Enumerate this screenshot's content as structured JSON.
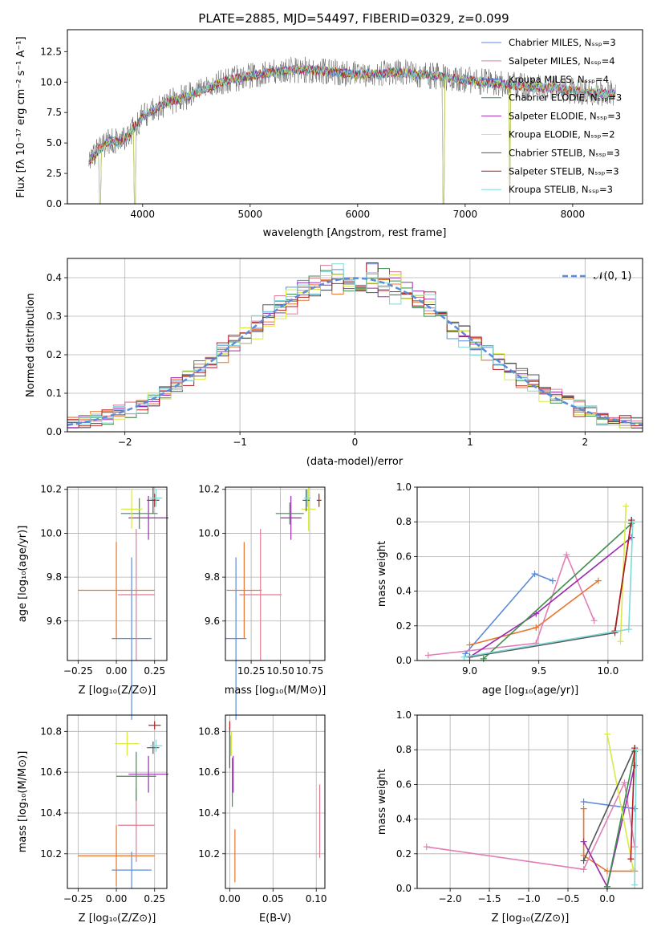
{
  "colors": {
    "chabrier_miles": "#5b8bd9",
    "salpeter_miles": "#e07b91",
    "kroupa_miles": "#4a73c9",
    "chabrier_elodie": "#3f8f4f",
    "salpeter_elodie": "#9a2ab0",
    "kroupa_elodie": "#d8ea45",
    "chabrier_stelib": "#555555",
    "salpeter_stelib": "#b01e1e",
    "kroupa_stelib": "#7fd8d8",
    "orange": "#e8742a",
    "pink": "#e27fb6",
    "normal_curve": "#5b8bd9",
    "grid": "#b0b0b0"
  },
  "chart_data": [
    {
      "id": "spectrum",
      "type": "line",
      "title": "PLATE=2885, MJD=54497, FIBERID=0329, z=0.099",
      "xlabel": "wavelength [Angstrom, rest frame]",
      "ylabel": "Flux [fλ 10⁻¹⁷ erg cm⁻² s⁻¹ A⁻¹]",
      "xlim": [
        3300,
        8650
      ],
      "ylim": [
        0,
        14.3
      ],
      "xticks": [
        "4000",
        "5000",
        "6000",
        "7000",
        "8000"
      ],
      "yticks": [
        "0.0",
        "2.5",
        "5.0",
        "7.5",
        "10.0",
        "12.5"
      ],
      "grid": false,
      "legend_position": "top-right",
      "series": [
        {
          "name": "Chabrier MILES, N_SSP=3",
          "legend": "Chabrier MILES, Nₛₛₚ=3"
        },
        {
          "name": "Salpeter MILES, N_SSP=4",
          "legend": "Salpeter MILES, Nₛₛₚ=4"
        },
        {
          "name": "Kroupa MILES, N_SSP=4",
          "legend": "Kroupa MILES, Nₛₛₚ=4"
        },
        {
          "name": "Chabrier ELODIE, N_SSP=3",
          "legend": "Chabrier ELODIE, Nₛₛₚ=3"
        },
        {
          "name": "Salpeter ELODIE, N_SSP=3",
          "legend": "Salpeter ELODIE, Nₛₛₚ=3"
        },
        {
          "name": "Kroupa ELODIE, N_SSP=2",
          "legend": "Kroupa ELODIE, Nₛₛₚ=2"
        },
        {
          "name": "Chabrier STELIB, N_SSP=3",
          "legend": "Chabrier STELIB, Nₛₛₚ=3"
        },
        {
          "name": "Salpeter STELIB, N_SSP=3",
          "legend": "Salpeter STELIB, Nₛₛₚ=3"
        },
        {
          "name": "Kroupa STELIB, N_SSP=3",
          "legend": "Kroupa STELIB, Nₛₛₚ=3"
        }
      ],
      "continuum": {
        "x": [
          3500,
          3600,
          3700,
          3800,
          3900,
          4000,
          4200,
          4400,
          4600,
          4800,
          5000,
          5200,
          5400,
          5600,
          5800,
          6000,
          6200,
          6400,
          6600,
          6800,
          7000,
          7200,
          7400,
          7600,
          7800,
          8000,
          8200,
          8400
        ],
        "y": [
          3.5,
          4.5,
          5.2,
          5.0,
          6.0,
          7.2,
          8.2,
          8.8,
          9.5,
          10.2,
          10.5,
          10.8,
          11.0,
          11.0,
          10.8,
          10.6,
          10.7,
          10.8,
          10.6,
          10.4,
          10.2,
          10.0,
          9.8,
          9.6,
          9.5,
          9.3,
          9.1,
          9.0
        ]
      },
      "drops": [
        {
          "x": 3600,
          "y": 0
        },
        {
          "x": 3930,
          "y": 0
        },
        {
          "x": 6800,
          "y": 0
        },
        {
          "x": 7415,
          "y": 0
        }
      ]
    },
    {
      "id": "residuals",
      "type": "bar",
      "xlabel": "(data-model)/error",
      "ylabel": "Normed distribution",
      "xlim": [
        -2.5,
        2.5
      ],
      "ylim": [
        0,
        0.45
      ],
      "xticks": [
        "−2",
        "−1",
        "0",
        "1",
        "2"
      ],
      "yticks": [
        "0.0",
        "0.1",
        "0.2",
        "0.3",
        "0.4"
      ],
      "grid": true,
      "legend_position": "top-right",
      "normal_curve": {
        "name": "𝒩(0, 1)",
        "mean": 0,
        "sigma": 1
      },
      "bins": {
        "start": -2.5,
        "width": 0.1,
        "count": 50
      },
      "series": [
        {
          "name": "Chabrier MILES",
          "seed": 1
        },
        {
          "name": "Salpeter MILES",
          "seed": 2
        },
        {
          "name": "Kroupa MILES",
          "seed": 3
        },
        {
          "name": "Chabrier ELODIE",
          "seed": 4
        },
        {
          "name": "Salpeter ELODIE",
          "seed": 5
        },
        {
          "name": "Kroupa ELODIE",
          "seed": 6
        },
        {
          "name": "Chabrier STELIB",
          "seed": 7
        },
        {
          "name": "Salpeter STELIB",
          "seed": 8
        },
        {
          "name": "Kroupa STELIB",
          "seed": 9
        }
      ]
    },
    {
      "id": "age-vs-z",
      "type": "scatter",
      "xlabel": "Z [log₁₀(Z/Z⊙)]",
      "ylabel": "age  [log₁₀(age/yr)]",
      "xlim": [
        -0.32,
        0.33
      ],
      "ylim": [
        9.42,
        10.21
      ],
      "xticks": [
        "−0.25",
        "0.00",
        "0.25"
      ],
      "yticks": [
        "9.6",
        "9.8",
        "10.0",
        "10.2"
      ],
      "grid": true,
      "points": [
        {
          "x": 0.1,
          "y": 9.52,
          "xerr": 0.13,
          "yerr": 0.37,
          "color": "#5b8bd9"
        },
        {
          "x": 0.0,
          "y": 9.74,
          "xerr": 0.25,
          "yerr": 0.22,
          "color": "#e8742a"
        },
        {
          "x": 0.13,
          "y": 9.72,
          "xerr": 0.12,
          "yerr": 0.3,
          "color": "#e07b91"
        },
        {
          "x": 0.21,
          "y": 10.07,
          "xerr": 0.13,
          "yerr": 0.1,
          "color": "#9a2ab0"
        },
        {
          "x": 0.15,
          "y": 10.09,
          "xerr": 0.12,
          "yerr": 0.07,
          "color": "#3f8f4f"
        },
        {
          "x": 0.1,
          "y": 10.11,
          "xerr": 0.07,
          "yerr": 0.09,
          "color": "#d8ea45"
        },
        {
          "x": 0.24,
          "y": 10.15,
          "xerr": 0.04,
          "yerr": 0.06,
          "color": "#555555"
        },
        {
          "x": 0.25,
          "y": 10.15,
          "xerr": 0.03,
          "yerr": 0.03,
          "color": "#b01e1e"
        },
        {
          "x": 0.26,
          "y": 10.16,
          "xerr": 0.04,
          "yerr": 0.04,
          "color": "#7fd8d8"
        }
      ]
    },
    {
      "id": "age-vs-mass",
      "type": "scatter",
      "xlabel": "mass [log₁₀(M/M⊙)]",
      "ylabel": "",
      "xlim": [
        10.03,
        10.88
      ],
      "ylim": [
        9.42,
        10.21
      ],
      "xticks": [
        "10.25",
        "10.50",
        "10.75"
      ],
      "yticks": [
        "9.6",
        "9.8",
        "10.0",
        "10.2"
      ],
      "grid": true,
      "points": [
        {
          "x": 10.12,
          "y": 9.52,
          "xerr": 0.09,
          "yerr": 0.37,
          "color": "#5b8bd9"
        },
        {
          "x": 10.19,
          "y": 9.74,
          "xerr": 0.15,
          "yerr": 0.22,
          "color": "#e8742a"
        },
        {
          "x": 10.33,
          "y": 9.72,
          "xerr": 0.18,
          "yerr": 0.3,
          "color": "#e07b91"
        },
        {
          "x": 10.59,
          "y": 10.07,
          "xerr": 0.09,
          "yerr": 0.1,
          "color": "#9a2ab0"
        },
        {
          "x": 10.58,
          "y": 10.09,
          "xerr": 0.12,
          "yerr": 0.05,
          "color": "#3f8f4f"
        },
        {
          "x": 10.74,
          "y": 10.11,
          "xerr": 0.06,
          "yerr": 0.1,
          "color": "#d8ea45"
        },
        {
          "x": 10.72,
          "y": 10.15,
          "xerr": 0.03,
          "yerr": 0.05,
          "color": "#555555"
        },
        {
          "x": 10.83,
          "y": 10.15,
          "xerr": 0.02,
          "yerr": 0.03,
          "color": "#b01e1e"
        },
        {
          "x": 10.73,
          "y": 10.16,
          "xerr": 0.03,
          "yerr": 0.04,
          "color": "#7fd8d8"
        }
      ]
    },
    {
      "id": "weight-vs-age",
      "type": "line",
      "xlabel": "age  [log₁₀(age/yr)]",
      "ylabel": "mass weight",
      "xlim": [
        8.62,
        10.25
      ],
      "ylim": [
        0,
        1
      ],
      "xticks": [
        "9.0",
        "9.5",
        "10.0"
      ],
      "yticks": [
        "0.0",
        "0.2",
        "0.4",
        "0.6",
        "0.8",
        "1.0"
      ],
      "grid": true,
      "series": [
        {
          "color": "#5b8bd9",
          "x": [
            8.97,
            9.47,
            9.6
          ],
          "y": [
            0.04,
            0.5,
            0.46
          ]
        },
        {
          "color": "#e8742a",
          "x": [
            9.0,
            9.48,
            9.93
          ],
          "y": [
            0.09,
            0.19,
            0.46
          ]
        },
        {
          "color": "#e27fb6",
          "x": [
            8.7,
            9.48,
            9.7,
            9.9
          ],
          "y": [
            0.03,
            0.1,
            0.61,
            0.23
          ]
        },
        {
          "color": "#9a2ab0",
          "x": [
            9.0,
            9.48,
            10.17
          ],
          "y": [
            0.02,
            0.27,
            0.71
          ]
        },
        {
          "color": "#3f8f4f",
          "x": [
            9.1,
            10.17
          ],
          "y": [
            0.01,
            0.79
          ]
        },
        {
          "color": "#d8ea45",
          "x": [
            10.09,
            10.13
          ],
          "y": [
            0.11,
            0.89
          ]
        },
        {
          "color": "#555555",
          "x": [
            9.0,
            10.05,
            10.17
          ],
          "y": [
            0.02,
            0.16,
            0.81
          ]
        },
        {
          "color": "#b01e1e",
          "x": [
            10.05,
            10.17
          ],
          "y": [
            0.17,
            0.81
          ]
        },
        {
          "color": "#7fd8d8",
          "x": [
            8.96,
            10.15,
            10.18
          ],
          "y": [
            0.02,
            0.18,
            0.8
          ]
        }
      ]
    },
    {
      "id": "mass-vs-z",
      "type": "scatter",
      "xlabel": "Z [log₁₀(Z/Z⊙)]",
      "ylabel": "mass [log₁₀(M/M⊙)]",
      "xlim": [
        -0.32,
        0.33
      ],
      "ylim": [
        10.03,
        10.88
      ],
      "xticks": [
        "−0.25",
        "0.00",
        "0.25"
      ],
      "yticks": [
        "10.2",
        "10.4",
        "10.6",
        "10.8"
      ],
      "grid": true,
      "points": [
        {
          "x": 0.1,
          "y": 10.12,
          "xerr": 0.13,
          "yerr": 0.09,
          "color": "#5b8bd9"
        },
        {
          "x": 0.0,
          "y": 10.19,
          "xerr": 0.25,
          "yerr": 0.15,
          "color": "#e8742a"
        },
        {
          "x": 0.13,
          "y": 10.34,
          "xerr": 0.12,
          "yerr": 0.18,
          "color": "#e07b91"
        },
        {
          "x": 0.21,
          "y": 10.59,
          "xerr": 0.13,
          "yerr": 0.09,
          "color": "#9a2ab0"
        },
        {
          "x": 0.13,
          "y": 10.58,
          "xerr": 0.13,
          "yerr": 0.12,
          "color": "#3f8f4f"
        },
        {
          "x": 0.07,
          "y": 10.74,
          "xerr": 0.08,
          "yerr": 0.06,
          "color": "#d8ea45"
        },
        {
          "x": 0.24,
          "y": 10.72,
          "xerr": 0.04,
          "yerr": 0.03,
          "color": "#555555"
        },
        {
          "x": 0.25,
          "y": 10.83,
          "xerr": 0.04,
          "yerr": 0.02,
          "color": "#b01e1e"
        },
        {
          "x": 0.26,
          "y": 10.73,
          "xerr": 0.04,
          "yerr": 0.03,
          "color": "#7fd8d8"
        }
      ]
    },
    {
      "id": "mass-vs-ebv",
      "type": "scatter",
      "xlabel": "E(B-V)",
      "ylabel": "",
      "xlim": [
        -0.005,
        0.11
      ],
      "ylim": [
        10.03,
        10.88
      ],
      "xticks": [
        "0.00",
        "0.05",
        "0.10"
      ],
      "yticks": [
        "10.2",
        "10.4",
        "10.6",
        "10.8"
      ],
      "grid": true,
      "points": [
        {
          "x": 0.0,
          "y": 10.72,
          "xerr": 0.0,
          "yerr": 0.1,
          "color": "#555555"
        },
        {
          "x": 0.0,
          "y": 10.83,
          "xerr": 0.0,
          "yerr": 0.02,
          "color": "#b01e1e"
        },
        {
          "x": 0.001,
          "y": 10.73,
          "xerr": 0.0,
          "yerr": 0.05,
          "color": "#7fd8d8"
        },
        {
          "x": 0.002,
          "y": 10.74,
          "xerr": 0.0,
          "yerr": 0.06,
          "color": "#d8ea45"
        },
        {
          "x": 0.003,
          "y": 10.55,
          "xerr": 0.0,
          "yerr": 0.12,
          "color": "#3f8f4f"
        },
        {
          "x": 0.004,
          "y": 10.59,
          "xerr": 0.0,
          "yerr": 0.09,
          "color": "#9a2ab0"
        },
        {
          "x": 0.006,
          "y": 10.19,
          "xerr": 0.0,
          "yerr": 0.13,
          "color": "#e8742a"
        },
        {
          "x": 0.104,
          "y": 10.36,
          "xerr": 0.0,
          "yerr": 0.18,
          "color": "#e07b91"
        }
      ]
    },
    {
      "id": "weight-vs-z",
      "type": "line",
      "xlabel": "Z [log₁₀(Z/Z⊙)]",
      "ylabel": "mass weight",
      "xlim": [
        -2.42,
        0.45
      ],
      "ylim": [
        0,
        1
      ],
      "xticks": [
        "−2.0",
        "−1.5",
        "−1.0",
        "−0.5",
        "0.0"
      ],
      "yticks": [
        "0.0",
        "0.2",
        "0.4",
        "0.6",
        "0.8",
        "1.0"
      ],
      "grid": true,
      "series": [
        {
          "color": "#5b8bd9",
          "x": [
            -0.3,
            0.35
          ],
          "y": [
            0.5,
            0.46
          ]
        },
        {
          "color": "#e8742a",
          "x": [
            -0.3,
            -0.3,
            0.0,
            0.35
          ],
          "y": [
            0.46,
            0.19,
            0.1,
            0.1
          ]
        },
        {
          "color": "#e27fb6",
          "x": [
            -2.3,
            -0.3,
            0.22,
            0.35
          ],
          "y": [
            0.24,
            0.11,
            0.61,
            0.24
          ]
        },
        {
          "color": "#9a2ab0",
          "x": [
            -0.3,
            0.0,
            0.35
          ],
          "y": [
            0.27,
            0.01,
            0.71
          ]
        },
        {
          "color": "#3f8f4f",
          "x": [
            0.0,
            0.35
          ],
          "y": [
            0.01,
            0.79
          ]
        },
        {
          "color": "#d8ea45",
          "x": [
            0.0,
            0.33
          ],
          "y": [
            0.89,
            0.11
          ]
        },
        {
          "color": "#555555",
          "x": [
            -0.3,
            0.35
          ],
          "y": [
            0.16,
            0.81
          ]
        },
        {
          "color": "#b01e1e",
          "x": [
            0.3,
            0.35
          ],
          "y": [
            0.17,
            0.81
          ]
        },
        {
          "color": "#7fd8d8",
          "x": [
            0.35,
            0.37
          ],
          "y": [
            0.02,
            0.8
          ]
        }
      ]
    }
  ]
}
